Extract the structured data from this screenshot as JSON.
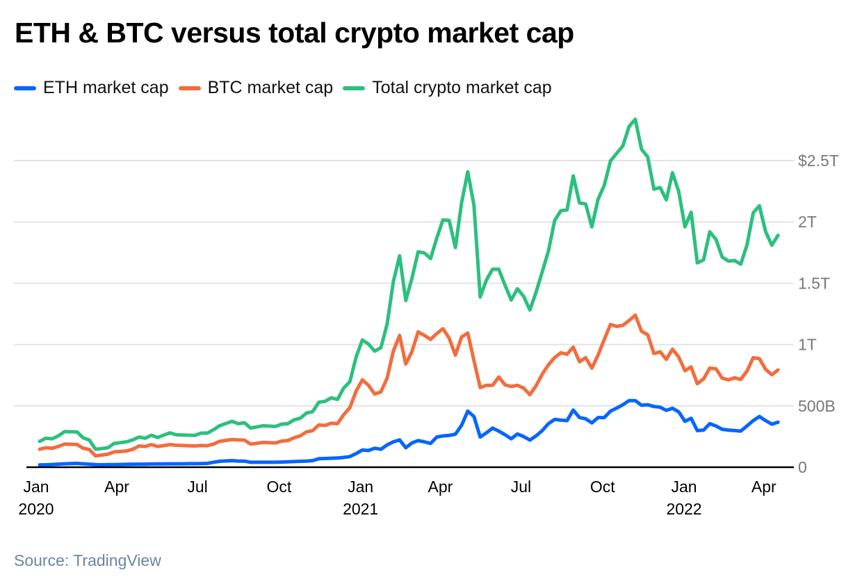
{
  "chart_data": {
    "type": "line",
    "title": "ETH & BTC versus total crypto market cap",
    "source": "Source: TradingView",
    "xlabel": "",
    "ylabel": "",
    "y_unit": "trillion USD",
    "ylim": [
      0,
      2.9
    ],
    "yticks": [
      {
        "value": 0,
        "label": "0"
      },
      {
        "value": 0.5,
        "label": "500B"
      },
      {
        "value": 1,
        "label": "1T"
      },
      {
        "value": 1.5,
        "label": "1.5T"
      },
      {
        "value": 2,
        "label": "2T"
      },
      {
        "value": 2.5,
        "label": "$2.5T"
      }
    ],
    "xticks": [
      {
        "date": "2020-01-01",
        "label": "Jan",
        "year": "2020"
      },
      {
        "date": "2020-04-01",
        "label": "Apr",
        "year": ""
      },
      {
        "date": "2020-07-01",
        "label": "Jul",
        "year": ""
      },
      {
        "date": "2020-10-01",
        "label": "Oct",
        "year": ""
      },
      {
        "date": "2021-01-01",
        "label": "Jan",
        "year": "2021"
      },
      {
        "date": "2021-04-01",
        "label": "Apr",
        "year": ""
      },
      {
        "date": "2021-07-01",
        "label": "Jul",
        "year": ""
      },
      {
        "date": "2021-10-01",
        "label": "Oct",
        "year": ""
      },
      {
        "date": "2022-01-01",
        "label": "Jan",
        "year": "2022"
      },
      {
        "date": "2022-04-01",
        "label": "Apr",
        "year": ""
      }
    ],
    "grid": "horizontal",
    "legend_position": "top-left",
    "x": [
      "2020-01-05",
      "2020-01-12",
      "2020-01-19",
      "2020-01-26",
      "2020-02-02",
      "2020-02-09",
      "2020-02-16",
      "2020-02-23",
      "2020-03-01",
      "2020-03-08",
      "2020-03-15",
      "2020-03-22",
      "2020-03-29",
      "2020-04-05",
      "2020-04-12",
      "2020-04-19",
      "2020-04-26",
      "2020-05-03",
      "2020-05-10",
      "2020-05-17",
      "2020-05-24",
      "2020-05-31",
      "2020-06-07",
      "2020-06-14",
      "2020-06-21",
      "2020-06-28",
      "2020-07-05",
      "2020-07-12",
      "2020-07-19",
      "2020-07-26",
      "2020-08-02",
      "2020-08-09",
      "2020-08-16",
      "2020-08-23",
      "2020-08-30",
      "2020-09-06",
      "2020-09-13",
      "2020-09-20",
      "2020-09-27",
      "2020-10-04",
      "2020-10-11",
      "2020-10-18",
      "2020-10-25",
      "2020-11-01",
      "2020-11-08",
      "2020-11-15",
      "2020-11-22",
      "2020-11-29",
      "2020-12-06",
      "2020-12-13",
      "2020-12-20",
      "2020-12-27",
      "2021-01-03",
      "2021-01-10",
      "2021-01-17",
      "2021-01-24",
      "2021-01-31",
      "2021-02-07",
      "2021-02-14",
      "2021-02-21",
      "2021-02-28",
      "2021-03-07",
      "2021-03-14",
      "2021-03-21",
      "2021-03-28",
      "2021-04-04",
      "2021-04-11",
      "2021-04-18",
      "2021-04-25",
      "2021-05-02",
      "2021-05-09",
      "2021-05-16",
      "2021-05-23",
      "2021-05-30",
      "2021-06-06",
      "2021-06-13",
      "2021-06-20",
      "2021-06-27",
      "2021-07-04",
      "2021-07-11",
      "2021-07-18",
      "2021-07-25",
      "2021-08-01",
      "2021-08-08",
      "2021-08-15",
      "2021-08-22",
      "2021-08-29",
      "2021-09-05",
      "2021-09-12",
      "2021-09-19",
      "2021-09-26",
      "2021-10-03",
      "2021-10-10",
      "2021-10-17",
      "2021-10-24",
      "2021-10-31",
      "2021-11-07",
      "2021-11-14",
      "2021-11-21",
      "2021-11-28",
      "2021-12-05",
      "2021-12-12",
      "2021-12-19",
      "2021-12-26",
      "2022-01-02",
      "2022-01-09",
      "2022-01-16",
      "2022-01-23",
      "2022-01-30",
      "2022-02-06",
      "2022-02-13",
      "2022-02-20",
      "2022-02-27",
      "2022-03-06",
      "2022-03-13",
      "2022-03-20",
      "2022-03-27",
      "2022-04-03",
      "2022-04-10",
      "2022-04-17"
    ],
    "series": [
      {
        "name": "Total crypto market cap",
        "color": "#2dbf7f",
        "values": [
          0.211,
          0.236,
          0.232,
          0.255,
          0.29,
          0.289,
          0.288,
          0.24,
          0.221,
          0.146,
          0.152,
          0.159,
          0.194,
          0.2,
          0.207,
          0.223,
          0.246,
          0.236,
          0.261,
          0.242,
          0.262,
          0.28,
          0.265,
          0.263,
          0.261,
          0.259,
          0.278,
          0.278,
          0.305,
          0.338,
          0.356,
          0.374,
          0.355,
          0.363,
          0.319,
          0.328,
          0.338,
          0.335,
          0.332,
          0.351,
          0.355,
          0.386,
          0.399,
          0.441,
          0.453,
          0.53,
          0.537,
          0.566,
          0.553,
          0.645,
          0.697,
          0.898,
          1.038,
          1.004,
          0.946,
          0.975,
          1.167,
          1.512,
          1.724,
          1.359,
          1.541,
          1.756,
          1.747,
          1.701,
          1.868,
          2.017,
          2.012,
          1.791,
          2.156,
          2.409,
          2.136,
          1.388,
          1.526,
          1.614,
          1.614,
          1.484,
          1.363,
          1.455,
          1.393,
          1.282,
          1.426,
          1.593,
          1.762,
          2.012,
          2.092,
          2.098,
          2.376,
          2.155,
          2.146,
          1.96,
          2.184,
          2.299,
          2.497,
          2.559,
          2.62,
          2.779,
          2.837,
          2.593,
          2.53,
          2.267,
          2.28,
          2.18,
          2.401,
          2.248,
          1.96,
          2.079,
          1.666,
          1.691,
          1.919,
          1.858,
          1.714,
          1.681,
          1.685,
          1.656,
          1.81,
          2.073,
          2.132,
          1.921,
          1.81,
          1.891
        ]
      },
      {
        "name": "BTC market cap",
        "color": "#f26d3d",
        "values": [
          0.146,
          0.159,
          0.155,
          0.169,
          0.188,
          0.187,
          0.186,
          0.155,
          0.144,
          0.092,
          0.099,
          0.106,
          0.125,
          0.128,
          0.132,
          0.146,
          0.173,
          0.169,
          0.184,
          0.169,
          0.176,
          0.184,
          0.179,
          0.177,
          0.175,
          0.173,
          0.177,
          0.175,
          0.188,
          0.211,
          0.218,
          0.226,
          0.223,
          0.221,
          0.188,
          0.195,
          0.202,
          0.2,
          0.198,
          0.213,
          0.217,
          0.24,
          0.255,
          0.288,
          0.298,
          0.345,
          0.34,
          0.359,
          0.355,
          0.428,
          0.486,
          0.62,
          0.712,
          0.668,
          0.597,
          0.614,
          0.726,
          0.946,
          1.075,
          0.841,
          0.942,
          1.104,
          1.075,
          1.042,
          1.09,
          1.129,
          1.052,
          0.914,
          1.061,
          1.094,
          0.869,
          0.649,
          0.668,
          0.668,
          0.735,
          0.672,
          0.658,
          0.668,
          0.645,
          0.591,
          0.664,
          0.758,
          0.835,
          0.894,
          0.933,
          0.921,
          0.979,
          0.86,
          0.893,
          0.808,
          0.914,
          1.042,
          1.163,
          1.148,
          1.157,
          1.196,
          1.24,
          1.109,
          1.081,
          0.927,
          0.941,
          0.879,
          0.962,
          0.898,
          0.787,
          0.818,
          0.681,
          0.72,
          0.808,
          0.802,
          0.726,
          0.712,
          0.729,
          0.716,
          0.783,
          0.893,
          0.885,
          0.798,
          0.754,
          0.793
        ]
      },
      {
        "name": "ETH market cap",
        "color": "#0765ff",
        "values": [
          0.019,
          0.02,
          0.022,
          0.025,
          0.028,
          0.03,
          0.031,
          0.028,
          0.025,
          0.021,
          0.02,
          0.021,
          0.021,
          0.022,
          0.023,
          0.024,
          0.025,
          0.025,
          0.026,
          0.027,
          0.027,
          0.028,
          0.028,
          0.028,
          0.029,
          0.029,
          0.03,
          0.031,
          0.04,
          0.048,
          0.051,
          0.054,
          0.05,
          0.05,
          0.04,
          0.04,
          0.04,
          0.04,
          0.04,
          0.042,
          0.044,
          0.046,
          0.048,
          0.05,
          0.054,
          0.069,
          0.071,
          0.073,
          0.075,
          0.08,
          0.086,
          0.111,
          0.14,
          0.136,
          0.155,
          0.146,
          0.182,
          0.207,
          0.223,
          0.159,
          0.198,
          0.217,
          0.207,
          0.194,
          0.246,
          0.255,
          0.259,
          0.269,
          0.342,
          0.457,
          0.413,
          0.246,
          0.28,
          0.319,
          0.294,
          0.265,
          0.232,
          0.271,
          0.25,
          0.221,
          0.255,
          0.298,
          0.355,
          0.39,
          0.384,
          0.38,
          0.466,
          0.405,
          0.395,
          0.361,
          0.405,
          0.405,
          0.457,
          0.482,
          0.509,
          0.543,
          0.543,
          0.505,
          0.509,
          0.495,
          0.489,
          0.463,
          0.48,
          0.451,
          0.374,
          0.399,
          0.298,
          0.303,
          0.355,
          0.336,
          0.309,
          0.303,
          0.299,
          0.294,
          0.336,
          0.38,
          0.413,
          0.38,
          0.351,
          0.367
        ]
      }
    ],
    "legend": [
      {
        "label": "ETH market cap",
        "color": "#0765ff"
      },
      {
        "label": "BTC market cap",
        "color": "#f26d3d"
      },
      {
        "label": "Total crypto market cap",
        "color": "#2dbf7f"
      }
    ]
  }
}
